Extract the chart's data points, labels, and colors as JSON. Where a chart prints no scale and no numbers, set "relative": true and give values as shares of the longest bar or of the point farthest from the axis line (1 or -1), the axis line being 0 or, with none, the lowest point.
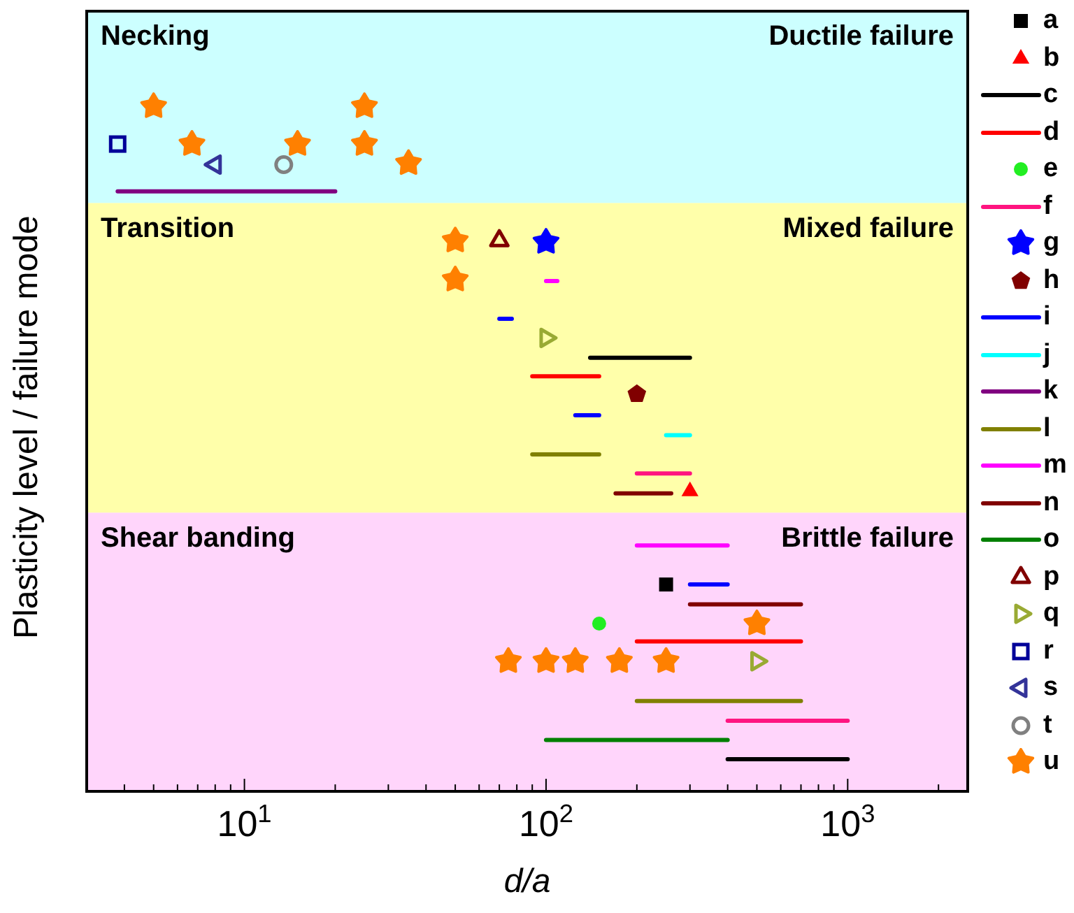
{
  "chart_data": {
    "type": "scatter",
    "relative": true,
    "xlabel": "d/a",
    "ylabel": "Plasticity level / failure mode",
    "log": "x",
    "xlim": [
      3,
      2500
    ],
    "xticks": [
      {
        "value": 4,
        "label": null
      },
      {
        "value": 5,
        "label": null
      },
      {
        "value": 6,
        "label": null
      },
      {
        "value": 7,
        "label": null
      },
      {
        "value": 8,
        "label": null
      },
      {
        "value": 9,
        "label": null
      },
      {
        "value": 10,
        "label": "10$^{1}$"
      },
      {
        "value": 20,
        "label": null
      },
      {
        "value": 30,
        "label": null
      },
      {
        "value": 40,
        "label": null
      },
      {
        "value": 50,
        "label": null
      },
      {
        "value": 60,
        "label": null
      },
      {
        "value": 70,
        "label": null
      },
      {
        "value": 80,
        "label": null
      },
      {
        "value": 90,
        "label": null
      },
      {
        "value": 100,
        "label": "10$^{2}$"
      },
      {
        "value": 200,
        "label": null
      },
      {
        "value": 300,
        "label": null
      },
      {
        "value": 400,
        "label": null
      },
      {
        "value": 500,
        "label": null
      },
      {
        "value": 600,
        "label": null
      },
      {
        "value": 700,
        "label": null
      },
      {
        "value": 800,
        "label": null
      },
      {
        "value": 900,
        "label": null
      },
      {
        "value": 1000,
        "label": "10$^{3}$"
      },
      {
        "value": 2000,
        "label": null
      }
    ],
    "legend": "right",
    "bands": [
      {
        "axis": "y",
        "from": 0,
        "to": 0.407,
        "label": "Shear banding",
        "color": "#ffd5fb"
      },
      {
        "axis": "y",
        "from": 0.407,
        "to": 0.859,
        "label": "Transition",
        "color": "#ffffaa"
      },
      {
        "axis": "y",
        "from": 0.859,
        "to": 1.139,
        "label": "Necking",
        "color": "#ccffff"
      }
    ],
    "annotations": [
      "Ductile failure",
      "Mixed failure",
      "Brittle failure"
    ],
    "series": [
      {
        "name": "a",
        "marker": "square",
        "color": "#000000",
        "x": [
          250
        ],
        "values": [
          0.302
        ]
      },
      {
        "name": "b",
        "marker": "triangle",
        "color": "#ff0000",
        "x": [
          300
        ],
        "values": [
          0.438
        ]
      },
      {
        "name": "c",
        "type": "line",
        "color": "#000000",
        "x": [
          140,
          300,
          350,
          400,
          1000
        ],
        "values": [
          0.633,
          0.633,
          null,
          0.047,
          0.047
        ]
      },
      {
        "name": "d",
        "type": "line",
        "color": "#ff0000",
        "x": [
          90,
          150,
          170,
          200,
          700
        ],
        "values": [
          0.606,
          0.606,
          null,
          0.219,
          0.219
        ]
      },
      {
        "name": "e",
        "marker": "circle",
        "color": "#22ee22",
        "x": [
          150
        ],
        "values": [
          0.245
        ]
      },
      {
        "name": "f",
        "type": "line",
        "color": "#ff1480",
        "x": [
          200,
          300,
          350,
          400,
          1000
        ],
        "values": [
          0.464,
          0.464,
          null,
          0.103,
          0.103
        ]
      },
      {
        "name": "g",
        "marker": "star",
        "color": "#0000ff",
        "x": [
          100
        ],
        "values": [
          0.802
        ]
      },
      {
        "name": "h",
        "color": "#800000",
        "x": [
          200
        ],
        "values": [
          0.58
        ]
      },
      {
        "name": "i",
        "type": "line",
        "color": "#0000ff",
        "x": [
          70,
          77,
          100,
          125,
          150,
          200,
          300,
          400
        ],
        "values": [
          0.69,
          0.69,
          null,
          0.549,
          0.549,
          null,
          0.302,
          0.302
        ]
      },
      {
        "name": "j",
        "type": "line",
        "color": "#00ffff",
        "x": [
          250,
          300
        ],
        "values": [
          0.52,
          0.52
        ]
      },
      {
        "name": "k",
        "type": "line",
        "color": "#800080",
        "x": [
          3.8,
          20
        ],
        "values": [
          0.876,
          0.876
        ]
      },
      {
        "name": "l",
        "type": "line",
        "color": "#808000",
        "x": [
          90,
          150,
          170,
          200,
          700
        ],
        "values": [
          0.492,
          0.492,
          null,
          0.132,
          0.132
        ]
      },
      {
        "name": "m",
        "type": "line",
        "color": "#ff00ff",
        "x": [
          100,
          109,
          150,
          200,
          400
        ],
        "values": [
          0.745,
          0.745,
          null,
          0.359,
          0.359
        ]
      },
      {
        "name": "n",
        "type": "line",
        "color": "#800000",
        "x": [
          170,
          260,
          280,
          300,
          700
        ],
        "values": [
          0.435,
          0.435,
          null,
          0.273,
          0.273
        ]
      },
      {
        "name": "o",
        "type": "line",
        "color": "#008000",
        "x": [
          100,
          400
        ],
        "values": [
          0.075,
          0.075
        ]
      },
      {
        "name": "p",
        "marker": "triangle-open",
        "color": "#800000",
        "x": [
          70
        ],
        "values": [
          0.804
        ]
      },
      {
        "name": "q",
        "marker": "triangle-right-open",
        "color": "#99aa33",
        "x": [
          100,
          500
        ],
        "values": [
          0.662,
          0.19
        ]
      },
      {
        "name": "r",
        "marker": "square-open",
        "color": "#000099",
        "x": [
          3.8
        ],
        "values": [
          0.945
        ]
      },
      {
        "name": "s",
        "marker": "triangle-left-open",
        "color": "#333399",
        "x": [
          8
        ],
        "values": [
          0.915
        ]
      },
      {
        "name": "t",
        "marker": "circle-open",
        "color": "#808080",
        "x": [
          13.5
        ],
        "values": [
          0.915
        ]
      },
      {
        "name": "u",
        "marker": "star",
        "color": "#ff8000",
        "x": [
          5,
          6.7,
          15,
          25,
          25,
          35,
          50,
          50,
          500,
          75,
          100,
          125,
          175,
          250
        ],
        "values": [
          1,
          0.945,
          0.945,
          1,
          0.945,
          0.917,
          0.804,
          0.747,
          0.245,
          0.19,
          0.19,
          0.19,
          0.19,
          0.19
        ]
      }
    ]
  }
}
